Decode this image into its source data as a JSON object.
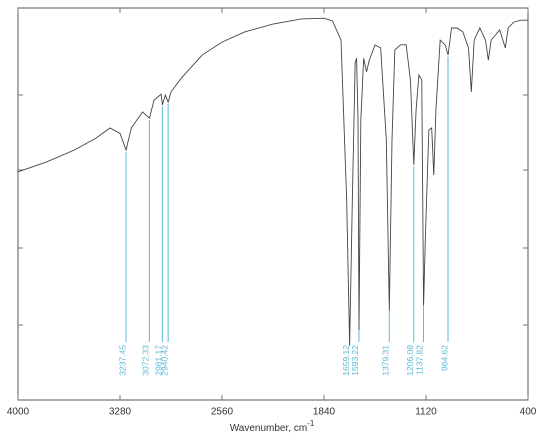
{
  "chart_data": {
    "type": "line",
    "xlabel": "Wavenumber, cm",
    "xlabel_sup": "-1",
    "xlim": [
      4000,
      400
    ],
    "xticks": [
      4000,
      3280,
      2560,
      1840,
      1120,
      400
    ],
    "ylim": [
      0,
      100
    ],
    "color": "#444444",
    "peak_color": "#5bb8d6",
    "x": [
      4000,
      3800,
      3600,
      3450,
      3350,
      3280,
      3237,
      3200,
      3120,
      3072,
      3040,
      2990,
      2981,
      2960,
      2940,
      2920,
      2850,
      2700,
      2560,
      2400,
      2200,
      2000,
      1840,
      1780,
      1720,
      1680,
      1659,
      1640,
      1620,
      1610,
      1600,
      1593,
      1580,
      1560,
      1540,
      1520,
      1480,
      1440,
      1400,
      1379,
      1360,
      1340,
      1300,
      1260,
      1230,
      1206,
      1190,
      1170,
      1150,
      1137,
      1125,
      1100,
      1080,
      1065,
      1050,
      1020,
      985,
      964,
      940,
      900,
      860,
      820,
      800,
      780,
      740,
      700,
      680,
      660,
      600,
      560,
      540,
      500,
      450,
      400
    ],
    "values": [
      58.2,
      60.7,
      63.8,
      66.8,
      69.4,
      68,
      63.8,
      69.4,
      73.5,
      71.9,
      76.5,
      78,
      75.3,
      77.8,
      76,
      78.6,
      82,
      88,
      91.3,
      93.9,
      95.9,
      97.2,
      97.4,
      96.7,
      91.8,
      51,
      14,
      51,
      86,
      87.2,
      71.4,
      17.9,
      71.4,
      87.2,
      83.7,
      86.7,
      90.6,
      89.8,
      66.3,
      22.9,
      66.3,
      89.3,
      90.6,
      90.6,
      81.6,
      60,
      74,
      82.9,
      81.6,
      24.2,
      40.8,
      68.9,
      69.4,
      57.4,
      74,
      91.8,
      90.6,
      88,
      94.9,
      94.9,
      93.9,
      89.8,
      78.6,
      91.8,
      94.9,
      91.8,
      86.7,
      91.8,
      94.4,
      89.8,
      94.9,
      96.4,
      96.9,
      96.9
    ],
    "peaks": [
      3237.45,
      3072.33,
      2981.17,
      2940.42,
      1659.12,
      1593.22,
      1379.31,
      1206.08,
      1137.82,
      964.62
    ]
  }
}
